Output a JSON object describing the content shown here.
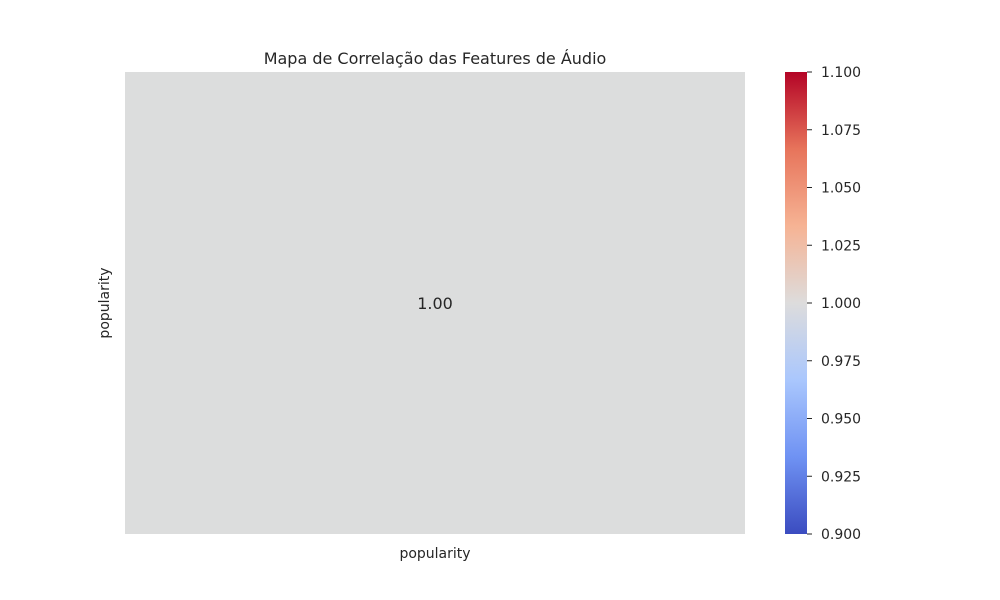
{
  "chart_data": {
    "type": "heatmap",
    "title": "Mapa de Correlação das Features de Áudio",
    "x_labels": [
      "popularity"
    ],
    "y_labels": [
      "popularity"
    ],
    "matrix": [
      [
        1.0
      ]
    ],
    "annotations": [
      [
        "1.00"
      ]
    ],
    "colormap": "coolwarm",
    "cell_color": "#dcdddd",
    "colorbar": {
      "vmin": 0.9,
      "vmax": 1.1,
      "ticks": [
        0.9,
        0.925,
        0.95,
        0.975,
        1.0,
        1.025,
        1.05,
        1.075,
        1.1
      ],
      "tick_labels": [
        "0.900",
        "0.925",
        "0.950",
        "0.975",
        "1.000",
        "1.025",
        "1.050",
        "1.075",
        "1.100"
      ],
      "stops": [
        "#3b4cc0",
        "#6f92f3",
        "#aac7fd",
        "#dddcdc",
        "#f6b394",
        "#e7745b",
        "#b40426"
      ]
    }
  }
}
